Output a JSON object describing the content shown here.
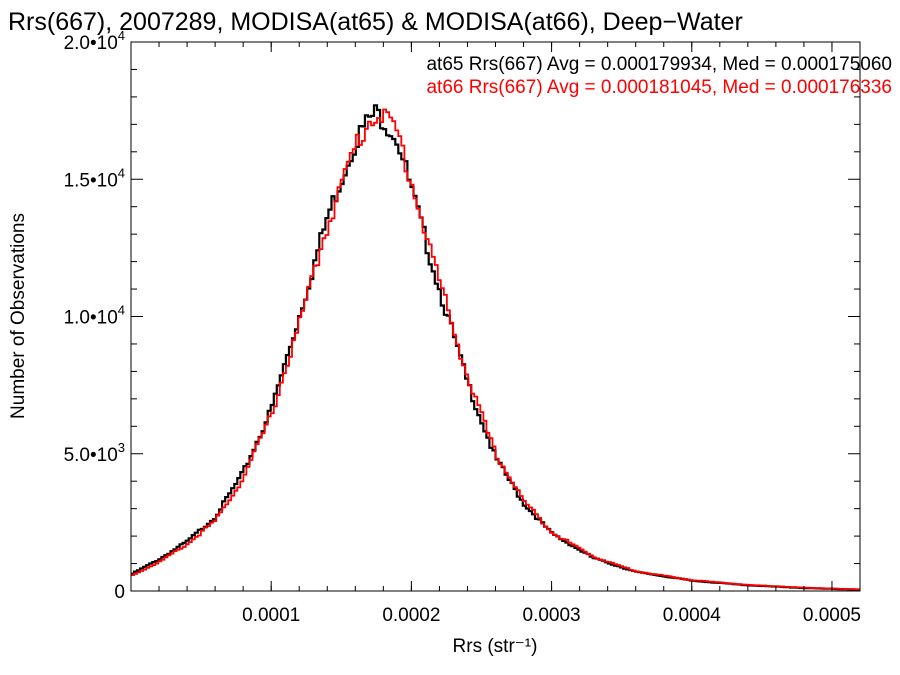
{
  "chart_data": {
    "type": "line",
    "step": true,
    "title": "Rrs(667), 2007289, MODISA(at65) & MODISA(at66), Deep−Water",
    "xlabel": "Rrs (str⁻¹)",
    "ylabel": "Number of Observations",
    "xlim": [
      0.0,
      0.00052
    ],
    "ylim": [
      0,
      20000
    ],
    "x_ticks": [
      {
        "value": 0.0001,
        "label": "0.0001"
      },
      {
        "value": 0.0002,
        "label": "0.0002"
      },
      {
        "value": 0.0003,
        "label": "0.0003"
      },
      {
        "value": 0.0004,
        "label": "0.0004"
      },
      {
        "value": 0.0005,
        "label": "0.0005"
      }
    ],
    "y_ticks": [
      {
        "value": 0,
        "label": "0",
        "sup": ""
      },
      {
        "value": 5000,
        "label": "5.0•10",
        "sup": "3"
      },
      {
        "value": 10000,
        "label": "1.0•10",
        "sup": "4"
      },
      {
        "value": 15000,
        "label": "1.5•10",
        "sup": "4"
      },
      {
        "value": 20000,
        "label": "2.0•10",
        "sup": "4"
      }
    ],
    "legend_placement": "top-right",
    "series": [
      {
        "name": "at65",
        "color": "#000000",
        "legend": "at65 Rrs(667) Avg = 0.000179934, Med = 0.000175060",
        "x": [
          0.0,
          2e-05,
          4e-05,
          6e-05,
          8e-05,
          0.0001,
          0.00012,
          0.00014,
          0.00016,
          0.00017,
          0.000175,
          0.00018,
          0.00019,
          0.0002,
          0.00022,
          0.00024,
          0.00026,
          0.00028,
          0.0003,
          0.00033,
          0.00036,
          0.0004,
          0.00044,
          0.00048,
          0.00052
        ],
        "y": [
          600,
          1150,
          1800,
          2700,
          4300,
          6600,
          10000,
          13600,
          16400,
          17200,
          17400,
          17200,
          16500,
          14600,
          11000,
          7600,
          4850,
          3200,
          2100,
          1200,
          700,
          380,
          210,
          110,
          50
        ]
      },
      {
        "name": "at66",
        "color": "#ff0000",
        "legend": "at66 Rrs(667) Avg = 0.000181045, Med = 0.000176336",
        "x": [
          0.0,
          2e-05,
          4e-05,
          6e-05,
          8e-05,
          0.0001,
          0.00012,
          0.00014,
          0.00016,
          0.00017,
          0.000175,
          0.00018,
          0.00019,
          0.0002,
          0.00022,
          0.00024,
          0.00026,
          0.00028,
          0.0003,
          0.00033,
          0.00036,
          0.0004,
          0.00044,
          0.00048,
          0.00052
        ],
        "y": [
          550,
          1050,
          1700,
          2550,
          4100,
          6400,
          9700,
          13300,
          16200,
          17100,
          17500,
          17300,
          16700,
          14900,
          11300,
          7800,
          5000,
          3300,
          2150,
          1250,
          720,
          400,
          220,
          120,
          55
        ]
      }
    ]
  }
}
